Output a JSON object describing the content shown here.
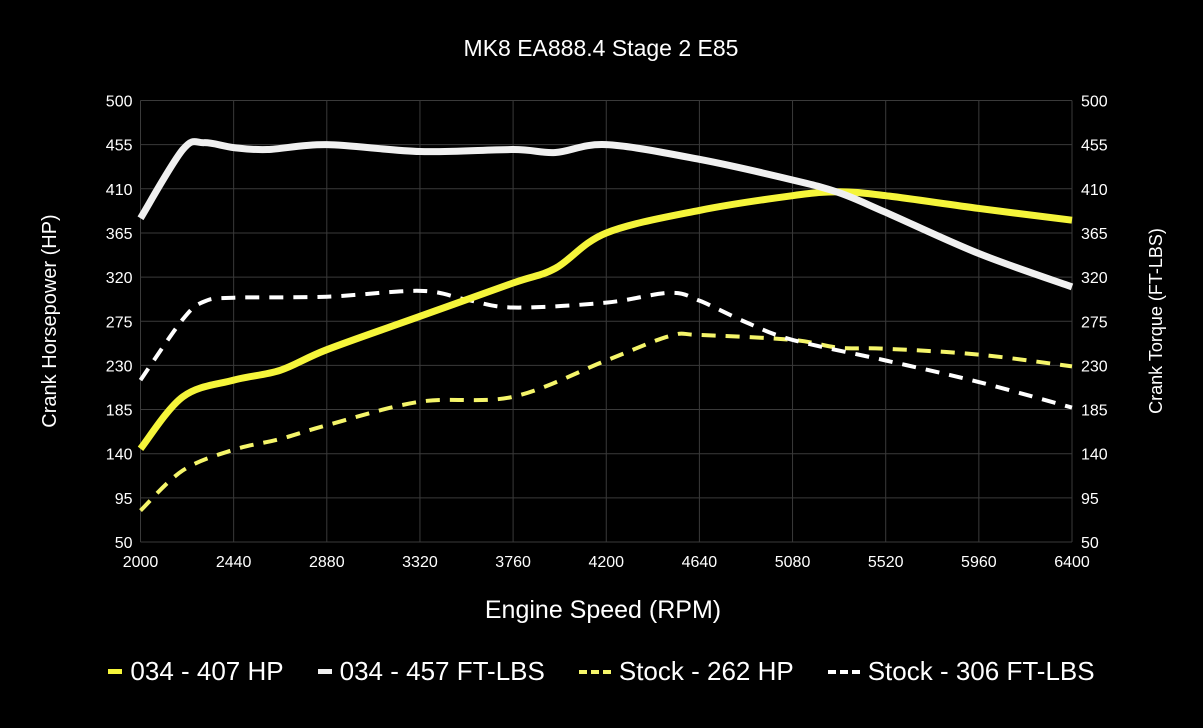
{
  "chart_data": {
    "type": "line",
    "title": "MK8 EA888.4 Stage 2 E85",
    "xlabel": "Engine Speed (RPM)",
    "ylabel_left": "Crank Horsepower (HP)",
    "ylabel_right": "Crank Torque (FT-LBS)",
    "xlim": [
      2000,
      6400
    ],
    "ylim": [
      50,
      500
    ],
    "y2lim": [
      50,
      500
    ],
    "xticks": [
      2000,
      2440,
      2880,
      3320,
      3760,
      4200,
      4640,
      5080,
      5520,
      5960,
      6400
    ],
    "yticks": [
      50,
      95,
      140,
      185,
      230,
      275,
      320,
      365,
      410,
      455,
      500
    ],
    "grid": true,
    "legend_position": "bottom",
    "series": [
      {
        "name": "034 - 407 HP",
        "color": "#f5f53a",
        "style": "solid",
        "x": [
          2000,
          2200,
          2440,
          2660,
          2880,
          3320,
          3760,
          3960,
          4200,
          4640,
          5080,
          5300,
          5520,
          5960,
          6400
        ],
        "y": [
          145,
          198,
          215,
          225,
          246,
          280,
          314,
          329,
          365,
          388,
          403,
          407,
          403,
          390,
          378
        ]
      },
      {
        "name": "034 - 457 FT-LBS",
        "color": "#f0f0f0",
        "style": "solid",
        "x": [
          2000,
          2200,
          2300,
          2440,
          2600,
          2880,
          3320,
          3760,
          3960,
          4200,
          4640,
          5080,
          5300,
          5520,
          5960,
          6400
        ],
        "y": [
          380,
          450,
          457,
          452,
          450,
          455,
          448,
          450,
          447,
          455,
          440,
          419,
          406,
          386,
          344,
          310
        ]
      },
      {
        "name": "Stock - 262 HP",
        "color": "#f5f56a",
        "style": "dashed",
        "x": [
          2000,
          2200,
          2440,
          2660,
          2880,
          3320,
          3760,
          4200,
          4500,
          4640,
          5080,
          5300,
          5520,
          5960,
          6400
        ],
        "y": [
          82,
          123,
          144,
          155,
          169,
          193,
          198,
          235,
          260,
          261,
          256,
          248,
          247,
          241,
          229
        ]
      },
      {
        "name": "Stock - 306 FT-LBS",
        "color": "#ffffff",
        "style": "dashed",
        "x": [
          2000,
          2200,
          2300,
          2440,
          2880,
          3320,
          3540,
          3760,
          4200,
          4500,
          4640,
          4860,
          5080,
          5520,
          5960,
          6400
        ],
        "y": [
          215,
          277,
          295,
          299,
          300,
          306,
          297,
          289,
          294,
          304,
          296,
          274,
          256,
          235,
          213,
          187
        ]
      }
    ]
  }
}
